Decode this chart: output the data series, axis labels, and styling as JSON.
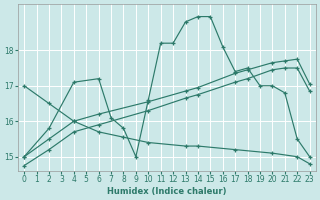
{
  "background_color": "#cce8e8",
  "grid_color": "#ffffff",
  "line_color": "#2d7a6a",
  "xlabel": "Humidex (Indice chaleur)",
  "xlim": [
    -0.5,
    23.5
  ],
  "ylim": [
    14.6,
    19.3
  ],
  "yticks": [
    15,
    16,
    17,
    18
  ],
  "xticks": [
    0,
    1,
    2,
    3,
    4,
    5,
    6,
    7,
    8,
    9,
    10,
    11,
    12,
    13,
    14,
    15,
    16,
    17,
    18,
    19,
    20,
    21,
    22,
    23
  ],
  "series": [
    {
      "x": [
        0,
        2,
        4,
        6,
        7,
        8,
        9,
        10,
        11,
        12,
        13,
        14,
        15,
        16,
        17,
        18,
        19,
        20,
        21,
        22,
        23
      ],
      "y": [
        15.0,
        15.8,
        17.1,
        17.2,
        16.1,
        15.8,
        15.0,
        16.6,
        18.2,
        18.2,
        18.8,
        18.95,
        18.95,
        18.1,
        17.4,
        17.5,
        17.0,
        17.0,
        16.8,
        15.5,
        15.0
      ]
    },
    {
      "x": [
        0,
        2,
        4,
        6,
        10,
        13,
        14,
        17,
        18,
        20,
        21,
        22,
        23
      ],
      "y": [
        15.0,
        15.5,
        16.0,
        16.2,
        16.55,
        16.85,
        16.95,
        17.35,
        17.45,
        17.65,
        17.7,
        17.75,
        17.05
      ]
    },
    {
      "x": [
        0,
        2,
        4,
        6,
        10,
        13,
        14,
        17,
        18,
        20,
        21,
        22,
        23
      ],
      "y": [
        14.75,
        15.2,
        15.7,
        15.9,
        16.3,
        16.65,
        16.75,
        17.1,
        17.2,
        17.45,
        17.5,
        17.5,
        16.85
      ]
    },
    {
      "x": [
        0,
        2,
        4,
        6,
        8,
        10,
        13,
        14,
        17,
        20,
        22,
        23
      ],
      "y": [
        17.0,
        16.5,
        16.0,
        15.7,
        15.55,
        15.4,
        15.3,
        15.3,
        15.2,
        15.1,
        15.0,
        14.8
      ]
    }
  ]
}
